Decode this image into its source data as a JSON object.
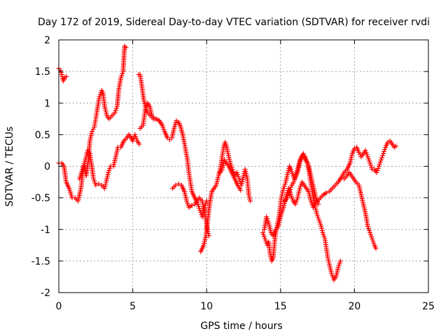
{
  "chart_data": {
    "type": "scatter",
    "title": "Day 172 of 2019, Sidereal Day-to-day VTEC variation (SDTVAR) for receiver rvdi",
    "xlabel": "GPS time / hours",
    "ylabel": "SDTVAR / TECUs",
    "xlim": [
      0,
      25
    ],
    "ylim": [
      -2,
      2
    ],
    "xticks": [
      "0",
      "5",
      "10",
      "15",
      "20",
      "25"
    ],
    "yticks": [
      "-2",
      "-1.5",
      "-1",
      "-0.5",
      "0",
      "0.5",
      "1",
      "1.5",
      "2"
    ],
    "grid": true,
    "marker": "+",
    "color": "#ff0000",
    "tracks": [
      {
        "points": [
          [
            0.0,
            1.55
          ],
          [
            0.1,
            1.52
          ],
          [
            0.2,
            1.45
          ],
          [
            0.3,
            1.35
          ],
          [
            0.4,
            1.4
          ],
          [
            0.5,
            1.42
          ]
        ]
      },
      {
        "points": [
          [
            0.0,
            0.05
          ],
          [
            0.2,
            0.05
          ],
          [
            0.35,
            0.0
          ],
          [
            0.5,
            -0.25
          ],
          [
            0.7,
            -0.35
          ],
          [
            0.9,
            -0.5
          ],
          [
            1.1,
            -0.5
          ],
          [
            1.3,
            -0.55
          ],
          [
            1.5,
            -0.35
          ],
          [
            1.6,
            -0.15
          ],
          [
            1.7,
            0.0
          ],
          [
            1.85,
            -0.15
          ],
          [
            2.0,
            0.1
          ],
          [
            2.1,
            0.4
          ],
          [
            2.25,
            0.55
          ],
          [
            2.4,
            0.62
          ],
          [
            2.5,
            0.75
          ],
          [
            2.6,
            0.9
          ],
          [
            2.75,
            1.1
          ],
          [
            2.9,
            1.2
          ],
          [
            3.0,
            1.15
          ],
          [
            3.1,
            0.95
          ],
          [
            3.25,
            0.8
          ],
          [
            3.4,
            0.75
          ],
          [
            3.6,
            0.8
          ],
          [
            3.8,
            0.85
          ],
          [
            3.95,
            0.95
          ],
          [
            4.05,
            1.2
          ],
          [
            4.2,
            1.4
          ],
          [
            4.35,
            1.5
          ],
          [
            4.45,
            1.9
          ],
          [
            4.55,
            1.88
          ]
        ]
      },
      {
        "points": [
          [
            1.4,
            -0.2
          ],
          [
            1.6,
            -0.05
          ],
          [
            1.8,
            0.1
          ],
          [
            1.95,
            0.25
          ],
          [
            2.1,
            0.2
          ],
          [
            2.2,
            0.05
          ],
          [
            2.35,
            -0.2
          ],
          [
            2.5,
            -0.3
          ],
          [
            2.7,
            -0.28
          ],
          [
            2.9,
            -0.3
          ],
          [
            3.1,
            -0.35
          ],
          [
            3.2,
            -0.25
          ],
          [
            3.35,
            -0.1
          ],
          [
            3.5,
            0.0
          ],
          [
            3.7,
            0.0
          ],
          [
            3.85,
            0.15
          ],
          [
            4.0,
            0.3
          ],
          [
            4.2,
            0.3
          ],
          [
            4.4,
            0.4
          ],
          [
            4.6,
            0.45
          ],
          [
            4.75,
            0.5
          ],
          [
            4.9,
            0.45
          ],
          [
            5.0,
            0.4
          ],
          [
            5.15,
            0.5
          ],
          [
            5.3,
            0.4
          ],
          [
            5.45,
            0.35
          ]
        ]
      },
      {
        "points": [
          [
            5.4,
            1.45
          ],
          [
            5.5,
            1.45
          ],
          [
            5.6,
            1.3
          ],
          [
            5.75,
            1.05
          ],
          [
            5.9,
            0.9
          ],
          [
            6.0,
            0.85
          ],
          [
            6.2,
            0.8
          ],
          [
            6.4,
            0.75
          ],
          [
            6.6,
            0.75
          ],
          [
            6.8,
            0.72
          ],
          [
            7.0,
            0.65
          ],
          [
            7.15,
            0.55
          ],
          [
            7.35,
            0.45
          ],
          [
            7.5,
            0.42
          ],
          [
            7.65,
            0.45
          ],
          [
            7.8,
            0.6
          ],
          [
            7.95,
            0.72
          ],
          [
            8.1,
            0.7
          ],
          [
            8.25,
            0.62
          ],
          [
            8.4,
            0.48
          ],
          [
            8.55,
            0.3
          ],
          [
            8.7,
            0.1
          ],
          [
            8.8,
            -0.1
          ],
          [
            8.9,
            -0.25
          ],
          [
            9.0,
            -0.4
          ],
          [
            9.2,
            -0.5
          ],
          [
            9.4,
            -0.6
          ],
          [
            9.55,
            -0.7
          ],
          [
            9.7,
            -0.8
          ],
          [
            9.85,
            -0.65
          ],
          [
            10.0,
            -0.55
          ]
        ]
      },
      {
        "points": [
          [
            5.5,
            0.6
          ],
          [
            5.7,
            0.65
          ],
          [
            5.85,
            0.9
          ],
          [
            6.0,
            1.0
          ],
          [
            6.15,
            0.95
          ],
          [
            6.3,
            0.8
          ],
          [
            6.5,
            0.75
          ]
        ]
      },
      {
        "points": [
          [
            7.7,
            -0.35
          ],
          [
            7.9,
            -0.3
          ],
          [
            8.1,
            -0.28
          ],
          [
            8.3,
            -0.3
          ],
          [
            8.5,
            -0.4
          ],
          [
            8.65,
            -0.55
          ],
          [
            8.8,
            -0.65
          ],
          [
            9.0,
            -0.62
          ],
          [
            9.2,
            -0.6
          ],
          [
            9.35,
            -0.55
          ],
          [
            9.5,
            -0.5
          ],
          [
            9.7,
            -0.55
          ],
          [
            9.85,
            -0.7
          ],
          [
            9.95,
            -0.85
          ],
          [
            10.05,
            -1.0
          ],
          [
            10.15,
            -1.1
          ]
        ]
      },
      {
        "points": [
          [
            9.6,
            -1.35
          ],
          [
            9.7,
            -1.3
          ],
          [
            9.8,
            -1.25
          ],
          [
            9.95,
            -1.1
          ],
          [
            10.05,
            -0.9
          ],
          [
            10.2,
            -0.6
          ],
          [
            10.35,
            -0.4
          ],
          [
            10.5,
            -0.35
          ],
          [
            10.65,
            -0.3
          ],
          [
            10.8,
            -0.15
          ],
          [
            10.95,
            0.0
          ],
          [
            11.05,
            0.15
          ],
          [
            11.15,
            0.3
          ],
          [
            11.25,
            0.38
          ],
          [
            11.35,
            0.32
          ],
          [
            11.45,
            0.2
          ],
          [
            11.6,
            0.05
          ],
          [
            11.75,
            -0.05
          ],
          [
            11.9,
            -0.15
          ],
          [
            12.05,
            -0.1
          ],
          [
            12.2,
            -0.2
          ],
          [
            12.35,
            -0.3
          ],
          [
            12.5,
            -0.15
          ],
          [
            12.6,
            -0.05
          ],
          [
            12.75,
            -0.2
          ],
          [
            12.85,
            -0.45
          ],
          [
            12.95,
            -0.55
          ]
        ]
      },
      {
        "points": [
          [
            10.9,
            -0.1
          ],
          [
            11.05,
            -0.05
          ],
          [
            11.2,
            0.1
          ],
          [
            11.35,
            0.05
          ],
          [
            11.5,
            0.0
          ],
          [
            11.7,
            -0.1
          ],
          [
            11.9,
            -0.2
          ],
          [
            12.1,
            -0.3
          ],
          [
            12.3,
            -0.38
          ]
        ]
      },
      {
        "points": [
          [
            13.8,
            -1.05
          ],
          [
            13.95,
            -1.15
          ],
          [
            14.1,
            -1.25
          ],
          [
            14.2,
            -1.2
          ],
          [
            14.3,
            -1.4
          ],
          [
            14.4,
            -1.5
          ],
          [
            14.5,
            -1.45
          ],
          [
            14.6,
            -1.2
          ],
          [
            14.7,
            -1.0
          ],
          [
            14.85,
            -0.85
          ],
          [
            14.95,
            -0.7
          ],
          [
            15.05,
            -0.5
          ],
          [
            15.2,
            -0.35
          ],
          [
            15.35,
            -0.25
          ],
          [
            15.5,
            -0.1
          ],
          [
            15.6,
            0.0
          ],
          [
            15.7,
            -0.05
          ],
          [
            15.85,
            -0.15
          ],
          [
            15.95,
            -0.2
          ],
          [
            16.1,
            -0.1
          ],
          [
            16.25,
            0.05
          ],
          [
            16.4,
            0.15
          ],
          [
            16.55,
            0.2
          ],
          [
            16.7,
            0.1
          ],
          [
            16.85,
            0.05
          ],
          [
            17.0,
            -0.2
          ],
          [
            17.15,
            -0.4
          ],
          [
            17.3,
            -0.6
          ],
          [
            17.45,
            -0.75
          ],
          [
            17.6,
            -0.85
          ],
          [
            17.75,
            -0.95
          ],
          [
            17.85,
            -1.05
          ],
          [
            18.0,
            -1.15
          ],
          [
            18.1,
            -1.3
          ],
          [
            18.2,
            -1.45
          ],
          [
            18.3,
            -1.55
          ],
          [
            18.45,
            -1.7
          ],
          [
            18.6,
            -1.8
          ],
          [
            18.75,
            -1.75
          ],
          [
            18.9,
            -1.6
          ],
          [
            19.05,
            -1.5
          ]
        ]
      },
      {
        "points": [
          [
            13.9,
            -1.0
          ],
          [
            14.05,
            -0.8
          ],
          [
            14.2,
            -0.9
          ],
          [
            14.35,
            -1.05
          ],
          [
            14.5,
            -1.1
          ],
          [
            14.7,
            -1.0
          ],
          [
            14.85,
            -0.95
          ],
          [
            15.0,
            -0.8
          ],
          [
            15.2,
            -0.65
          ],
          [
            15.4,
            -0.45
          ],
          [
            15.55,
            -0.35
          ],
          [
            15.7,
            -0.45
          ],
          [
            15.85,
            -0.55
          ],
          [
            16.0,
            -0.6
          ],
          [
            16.15,
            -0.5
          ],
          [
            16.3,
            -0.35
          ],
          [
            16.45,
            -0.25
          ],
          [
            16.6,
            -0.3
          ],
          [
            16.75,
            -0.35
          ],
          [
            16.9,
            -0.4
          ],
          [
            17.05,
            -0.55
          ],
          [
            17.2,
            -0.65
          ],
          [
            17.35,
            -0.6
          ],
          [
            17.5,
            -0.55
          ],
          [
            17.7,
            -0.5
          ],
          [
            17.9,
            -0.45
          ],
          [
            18.1,
            -0.42
          ],
          [
            18.3,
            -0.4
          ],
          [
            18.5,
            -0.35
          ],
          [
            18.7,
            -0.3
          ],
          [
            18.9,
            -0.25
          ],
          [
            19.1,
            -0.18
          ],
          [
            19.3,
            -0.1
          ],
          [
            19.5,
            -0.05
          ],
          [
            19.7,
            0.05
          ],
          [
            19.85,
            0.2
          ],
          [
            20.0,
            0.28
          ],
          [
            20.15,
            0.3
          ],
          [
            20.3,
            0.22
          ],
          [
            20.45,
            0.15
          ],
          [
            20.6,
            0.2
          ],
          [
            20.75,
            0.25
          ],
          [
            20.9,
            0.15
          ],
          [
            21.05,
            0.05
          ],
          [
            21.2,
            -0.05
          ],
          [
            21.35,
            -0.05
          ],
          [
            21.5,
            -0.1
          ],
          [
            21.65,
            0.0
          ],
          [
            21.8,
            0.1
          ],
          [
            21.95,
            0.2
          ],
          [
            22.1,
            0.3
          ],
          [
            22.25,
            0.38
          ],
          [
            22.4,
            0.4
          ],
          [
            22.55,
            0.35
          ],
          [
            22.7,
            0.3
          ],
          [
            22.8,
            0.32
          ]
        ]
      },
      {
        "points": [
          [
            15.3,
            -0.55
          ],
          [
            15.45,
            -0.5
          ],
          [
            15.6,
            -0.4
          ],
          [
            15.75,
            -0.3
          ],
          [
            15.9,
            -0.25
          ],
          [
            16.05,
            -0.15
          ],
          [
            16.2,
            -0.05
          ],
          [
            16.35,
            0.1
          ],
          [
            16.5,
            0.18
          ],
          [
            16.65,
            0.15
          ],
          [
            16.8,
            0.05
          ],
          [
            16.95,
            -0.05
          ],
          [
            17.1,
            -0.2
          ],
          [
            17.25,
            -0.35
          ],
          [
            17.4,
            -0.5
          ],
          [
            17.55,
            -0.6
          ]
        ]
      },
      {
        "points": [
          [
            19.3,
            -0.2
          ],
          [
            19.5,
            -0.15
          ],
          [
            19.65,
            -0.1
          ],
          [
            19.8,
            -0.15
          ],
          [
            19.95,
            -0.2
          ],
          [
            20.1,
            -0.25
          ],
          [
            20.3,
            -0.3
          ],
          [
            20.45,
            -0.45
          ],
          [
            20.6,
            -0.6
          ],
          [
            20.75,
            -0.75
          ],
          [
            20.9,
            -0.95
          ],
          [
            21.05,
            -1.05
          ],
          [
            21.2,
            -1.15
          ],
          [
            21.35,
            -1.25
          ],
          [
            21.45,
            -1.3
          ]
        ]
      }
    ]
  }
}
